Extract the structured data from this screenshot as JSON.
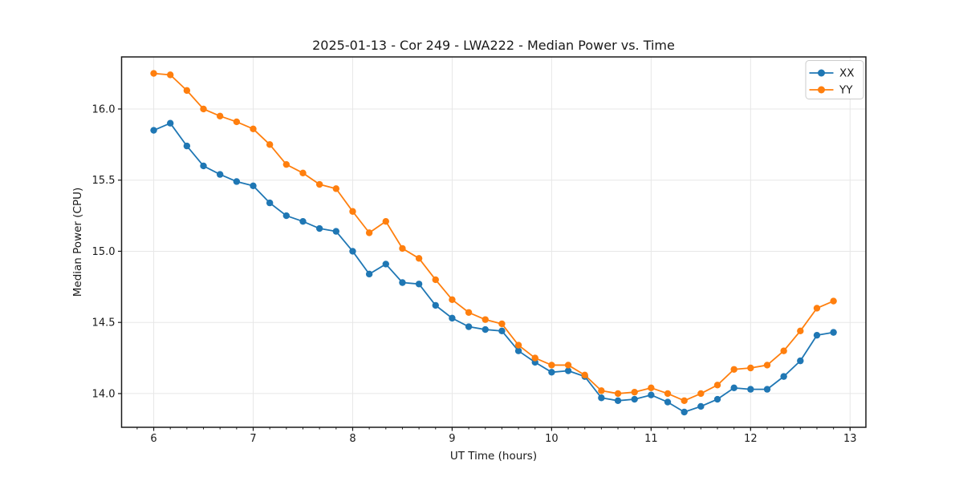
{
  "chart_data": {
    "type": "line",
    "title": "2025-01-13 - Cor 249 - LWA222 - Median Power vs. Time",
    "xlabel": "UT Time (hours)",
    "ylabel": "Median Power (CPU)",
    "x": [
      6.0,
      6.1667,
      6.3333,
      6.5,
      6.6667,
      6.8333,
      7.0,
      7.1667,
      7.3333,
      7.5,
      7.6667,
      7.8333,
      8.0,
      8.1667,
      8.3333,
      8.5,
      8.6667,
      8.8333,
      9.0,
      9.1667,
      9.3333,
      9.5,
      9.6667,
      9.8333,
      10.0,
      10.1667,
      10.3333,
      10.5,
      10.6667,
      10.8333,
      11.0,
      11.1667,
      11.3333,
      11.5,
      11.6667,
      11.8333,
      12.0,
      12.1667,
      12.3333,
      12.5,
      12.6667,
      12.8333
    ],
    "series": [
      {
        "name": "XX",
        "color": "#1f77b4",
        "values": [
          15.85,
          15.9,
          15.74,
          15.6,
          15.54,
          15.49,
          15.46,
          15.34,
          15.25,
          15.21,
          15.16,
          15.14,
          15.0,
          14.84,
          14.91,
          14.78,
          14.77,
          14.62,
          14.53,
          14.47,
          14.45,
          14.44,
          14.3,
          14.22,
          14.15,
          14.16,
          14.12,
          13.97,
          13.95,
          13.96,
          13.99,
          13.94,
          13.87,
          13.91,
          13.96,
          14.04,
          14.03,
          14.03,
          14.12,
          14.23,
          14.41,
          14.43
        ]
      },
      {
        "name": "YY",
        "color": "#ff7f0e",
        "values": [
          16.25,
          16.24,
          16.13,
          16.0,
          15.95,
          15.91,
          15.86,
          15.75,
          15.61,
          15.55,
          15.47,
          15.44,
          15.28,
          15.13,
          15.21,
          15.02,
          14.95,
          14.8,
          14.66,
          14.57,
          14.52,
          14.49,
          14.34,
          14.25,
          14.2,
          14.2,
          14.13,
          14.02,
          14.0,
          14.01,
          14.04,
          14.0,
          13.95,
          14.0,
          14.06,
          14.17,
          14.18,
          14.2,
          14.3,
          14.44,
          14.6,
          14.65
        ]
      }
    ],
    "xlim": [
      5.677,
      13.159
    ],
    "ylim": [
      13.763,
      16.366
    ],
    "xticks": [
      6,
      7,
      8,
      9,
      10,
      11,
      12,
      13
    ],
    "xtick_labels": [
      "6",
      "7",
      "8",
      "9",
      "10",
      "11",
      "12",
      "13"
    ],
    "yticks": [
      14.0,
      14.5,
      15.0,
      15.5,
      16.0
    ],
    "ytick_labels": [
      "14.0",
      "14.5",
      "15.0",
      "15.5",
      "16.0"
    ],
    "minor_xtick_step": 0.166667,
    "grid": true,
    "grid_color": "#e7e7e7",
    "axis_color": "#1a1a1a",
    "legend": {
      "position": "upper right",
      "entries": [
        "XX",
        "YY"
      ]
    },
    "marker": "circle"
  }
}
